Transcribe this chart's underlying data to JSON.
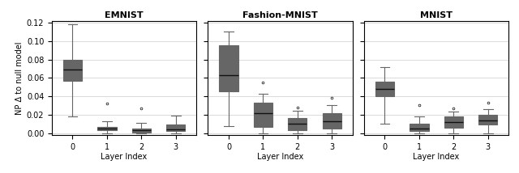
{
  "title_emnist": "EMNIST",
  "title_fmnist": "Fashion-MNIST",
  "title_mnist": "MNIST",
  "xlabel": "Layer Index",
  "ylabel": "NP Δ to null model",
  "xticks": [
    0,
    1,
    2,
    3
  ],
  "colors": [
    "#4c8ab0",
    "#e07b2e",
    "#3a8a3a",
    "#b83030"
  ],
  "emnist": {
    "0": {
      "q1": 0.057,
      "median": 0.069,
      "q3": 0.08,
      "whisker_low": 0.018,
      "whisker_high": 0.118,
      "fliers": []
    },
    "1": {
      "q1": 0.003,
      "median": 0.005,
      "q3": 0.007,
      "whisker_low": 0.0,
      "whisker_high": 0.013,
      "fliers": [
        0.032
      ]
    },
    "2": {
      "q1": 0.001,
      "median": 0.003,
      "q3": 0.005,
      "whisker_low": 0.0,
      "whisker_high": 0.011,
      "fliers": [
        0.027
      ]
    },
    "3": {
      "q1": 0.002,
      "median": 0.004,
      "q3": 0.009,
      "whisker_low": 0.0,
      "whisker_high": 0.019,
      "fliers": []
    }
  },
  "fmnist": {
    "0": {
      "q1": 0.045,
      "median": 0.063,
      "q3": 0.095,
      "whisker_low": 0.008,
      "whisker_high": 0.11,
      "fliers": []
    },
    "1": {
      "q1": 0.007,
      "median": 0.022,
      "q3": 0.033,
      "whisker_low": 0.0,
      "whisker_high": 0.043,
      "fliers": [
        0.055
      ]
    },
    "2": {
      "q1": 0.003,
      "median": 0.01,
      "q3": 0.016,
      "whisker_low": 0.0,
      "whisker_high": 0.024,
      "fliers": [
        0.028
      ]
    },
    "3": {
      "q1": 0.005,
      "median": 0.013,
      "q3": 0.022,
      "whisker_low": 0.0,
      "whisker_high": 0.03,
      "fliers": [
        0.038
      ]
    }
  },
  "mnist": {
    "0": {
      "q1": 0.04,
      "median": 0.048,
      "q3": 0.056,
      "whisker_low": 0.01,
      "whisker_high": 0.072,
      "fliers": []
    },
    "1": {
      "q1": 0.002,
      "median": 0.005,
      "q3": 0.01,
      "whisker_low": 0.0,
      "whisker_high": 0.018,
      "fliers": [
        0.03
      ]
    },
    "2": {
      "q1": 0.006,
      "median": 0.012,
      "q3": 0.018,
      "whisker_low": 0.0,
      "whisker_high": 0.023,
      "fliers": [
        0.027
      ]
    },
    "3": {
      "q1": 0.009,
      "median": 0.014,
      "q3": 0.02,
      "whisker_low": 0.0,
      "whisker_high": 0.026,
      "fliers": [
        0.033
      ]
    }
  },
  "ylim": [
    -0.002,
    0.122
  ],
  "yticks": [
    0.0,
    0.02,
    0.04,
    0.06,
    0.08,
    0.1,
    0.12
  ],
  "box_width": 0.55
}
